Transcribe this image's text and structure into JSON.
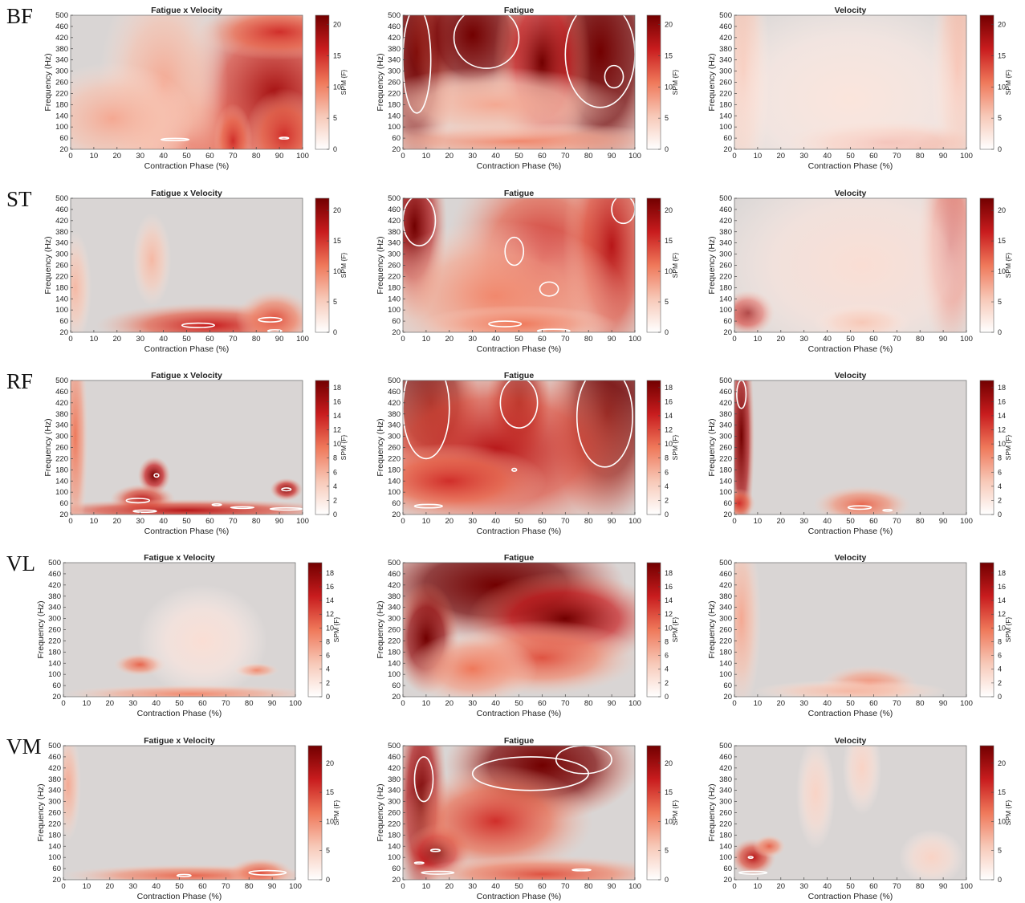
{
  "panel_titles": [
    "Fatigue x Velocity",
    "Fatigue",
    "Velocity"
  ],
  "xlabel": "Contraction Phase (%)",
  "ylabel": "Frequency (Hz)",
  "colorbar_label": "SPM {F}",
  "xticks": [
    0,
    10,
    20,
    30,
    40,
    50,
    60,
    70,
    80,
    90,
    100
  ],
  "yticks": [
    20,
    60,
    100,
    140,
    180,
    220,
    260,
    300,
    340,
    380,
    420,
    460,
    500
  ],
  "colors": {
    "low": "#d9d5d4",
    "high": "#720000",
    "contour": "#ffffff"
  },
  "muscles": [
    {
      "label": "BF",
      "colorbar_ticks": [
        0,
        5,
        10,
        15,
        20
      ],
      "cbar_max": 21.5
    },
    {
      "label": "ST",
      "colorbar_ticks": [
        0,
        5,
        10,
        15,
        20
      ],
      "cbar_max": 22
    },
    {
      "label": "RF",
      "colorbar_ticks": [
        0,
        2,
        4,
        6,
        8,
        10,
        12,
        14,
        16,
        18
      ],
      "cbar_max": 19
    },
    {
      "label": "VL",
      "colorbar_ticks": [
        0,
        2,
        4,
        6,
        8,
        10,
        12,
        14,
        16,
        18
      ],
      "cbar_max": 19.5
    },
    {
      "label": "VM",
      "colorbar_ticks": [
        0,
        5,
        10,
        15,
        20
      ],
      "cbar_max": 23
    }
  ],
  "chart_data": [
    {
      "type": "heatmap",
      "muscle": "BF",
      "title": "Fatigue x Velocity",
      "xlabel": "Contraction Phase (%)",
      "ylabel": "Frequency (Hz)",
      "xlim": [
        0,
        100
      ],
      "ylim": [
        20,
        500
      ],
      "colorbar": "SPM {F}",
      "clim": [
        0,
        21.5
      ],
      "blobs": [
        [
          52,
          40,
          0.25,
          0.35,
          0.6
        ],
        [
          88,
          220,
          0.3,
          0.55,
          0.85
        ],
        [
          90,
          440,
          0.25,
          0.15,
          0.7
        ],
        [
          70,
          50,
          0.06,
          0.2,
          0.7
        ],
        [
          92,
          70,
          0.12,
          0.25,
          0.7
        ],
        [
          40,
          250,
          0.2,
          0.6,
          0.35
        ],
        [
          18,
          130,
          0.25,
          0.3,
          0.35
        ]
      ],
      "contours": [
        [
          45,
          55,
          6,
          4
        ],
        [
          92,
          60,
          2,
          3
        ]
      ]
    },
    {
      "type": "heatmap",
      "muscle": "BF",
      "title": "Fatigue",
      "xlabel": "Contraction Phase (%)",
      "ylabel": "Frequency (Hz)",
      "xlim": [
        0,
        100
      ],
      "ylim": [
        20,
        500
      ],
      "colorbar": "SPM {F}",
      "clim": [
        0,
        21.5
      ],
      "blobs": [
        [
          6,
          370,
          0.12,
          0.7,
          1.3
        ],
        [
          30,
          430,
          0.2,
          0.4,
          1.3
        ],
        [
          85,
          370,
          0.2,
          0.7,
          1.4
        ],
        [
          60,
          330,
          0.15,
          0.55,
          1.0
        ],
        [
          50,
          50,
          0.5,
          0.1,
          0.45
        ],
        [
          40,
          180,
          0.4,
          0.2,
          0.35
        ]
      ],
      "contours": [
        [
          6,
          340,
          6,
          190
        ],
        [
          36,
          420,
          14,
          110
        ],
        [
          85,
          360,
          15,
          190
        ],
        [
          91,
          280,
          4,
          40
        ]
      ]
    },
    {
      "type": "heatmap",
      "muscle": "BF",
      "title": "Velocity",
      "xlabel": "Contraction Phase (%)",
      "ylabel": "Frequency (Hz)",
      "xlim": [
        0,
        100
      ],
      "ylim": [
        20,
        500
      ],
      "colorbar": "SPM {F}",
      "clim": [
        0,
        21.5
      ],
      "blobs": [
        [
          4,
          300,
          0.08,
          0.7,
          0.3
        ],
        [
          96,
          300,
          0.08,
          0.7,
          0.35
        ],
        [
          65,
          45,
          0.3,
          0.12,
          0.6
        ],
        [
          50,
          200,
          0.5,
          0.6,
          0.12
        ]
      ],
      "contours": []
    },
    {
      "type": "heatmap",
      "muscle": "ST",
      "title": "Fatigue x Velocity",
      "xlabel": "Contraction Phase (%)",
      "ylabel": "Frequency (Hz)",
      "xlim": [
        0,
        100
      ],
      "ylim": [
        20,
        500
      ],
      "colorbar": "SPM {F}",
      "clim": [
        0,
        22
      ],
      "blobs": [
        [
          60,
          45,
          0.35,
          0.12,
          0.75
        ],
        [
          88,
          70,
          0.12,
          0.15,
          0.6
        ],
        [
          2,
          180,
          0.05,
          0.3,
          0.3
        ],
        [
          35,
          280,
          0.06,
          0.25,
          0.3
        ]
      ],
      "contours": [
        [
          55,
          45,
          7,
          8
        ],
        [
          86,
          65,
          5,
          8
        ],
        [
          88,
          25,
          3,
          4
        ]
      ]
    },
    {
      "type": "heatmap",
      "muscle": "ST",
      "title": "Fatigue",
      "xlabel": "Contraction Phase (%)",
      "ylabel": "Frequency (Hz)",
      "xlim": [
        0,
        100
      ],
      "ylim": [
        20,
        500
      ],
      "colorbar": "SPM {F}",
      "clim": [
        0,
        22
      ],
      "blobs": [
        [
          5,
          400,
          0.1,
          0.5,
          1.1
        ],
        [
          60,
          280,
          0.3,
          0.6,
          0.75
        ],
        [
          90,
          330,
          0.15,
          0.7,
          0.8
        ],
        [
          40,
          150,
          0.4,
          0.4,
          0.45
        ],
        [
          50,
          50,
          0.3,
          0.1,
          0.5
        ]
      ],
      "contours": [
        [
          7,
          420,
          7,
          90
        ],
        [
          48,
          310,
          4,
          50
        ],
        [
          63,
          175,
          4,
          25
        ],
        [
          44,
          50,
          7,
          10
        ],
        [
          65,
          25,
          7,
          6
        ],
        [
          95,
          460,
          5,
          50
        ]
      ]
    },
    {
      "type": "heatmap",
      "muscle": "ST",
      "title": "Velocity",
      "xlabel": "Contraction Phase (%)",
      "ylabel": "Frequency (Hz)",
      "xlim": [
        0,
        100
      ],
      "ylim": [
        20,
        500
      ],
      "colorbar": "SPM {F}",
      "clim": [
        0,
        22
      ],
      "blobs": [
        [
          6,
          90,
          0.08,
          0.12,
          0.9
        ],
        [
          93,
          330,
          0.1,
          0.55,
          0.8
        ],
        [
          55,
          260,
          0.5,
          0.6,
          0.15
        ],
        [
          55,
          55,
          0.15,
          0.1,
          0.25
        ]
      ],
      "contours": []
    },
    {
      "type": "heatmap",
      "muscle": "RF",
      "title": "Fatigue x Velocity",
      "xlabel": "Contraction Phase (%)",
      "ylabel": "Frequency (Hz)",
      "xlim": [
        0,
        100
      ],
      "ylim": [
        20,
        500
      ],
      "colorbar": "SPM {F}",
      "clim": [
        0,
        19
      ],
      "blobs": [
        [
          36,
          160,
          0.05,
          0.1,
          1.0
        ],
        [
          31,
          75,
          0.1,
          0.08,
          0.8
        ],
        [
          93,
          110,
          0.05,
          0.06,
          0.95
        ],
        [
          50,
          35,
          0.5,
          0.06,
          0.8
        ],
        [
          2,
          300,
          0.04,
          0.6,
          0.5
        ]
      ],
      "contours": [
        [
          37,
          160,
          1,
          6
        ],
        [
          29,
          70,
          5,
          8
        ],
        [
          32,
          32,
          5,
          4
        ],
        [
          63,
          55,
          2,
          3
        ],
        [
          74,
          45,
          5,
          3
        ],
        [
          93,
          110,
          2,
          5
        ],
        [
          93,
          40,
          7,
          4
        ]
      ]
    },
    {
      "type": "heatmap",
      "muscle": "RF",
      "title": "Fatigue",
      "xlabel": "Contraction Phase (%)",
      "ylabel": "Frequency (Hz)",
      "xlim": [
        0,
        100
      ],
      "ylim": [
        20,
        500
      ],
      "colorbar": "SPM {F}",
      "clim": [
        0,
        19
      ],
      "blobs": [
        [
          12,
          420,
          0.15,
          0.4,
          1.4
        ],
        [
          50,
          420,
          0.1,
          0.3,
          1.2
        ],
        [
          88,
          380,
          0.18,
          0.6,
          1.4
        ],
        [
          40,
          250,
          0.5,
          0.5,
          0.8
        ],
        [
          20,
          140,
          0.3,
          0.2,
          0.7
        ]
      ],
      "contours": [
        [
          10,
          400,
          10,
          180
        ],
        [
          50,
          420,
          8,
          90
        ],
        [
          87,
          370,
          12,
          180
        ],
        [
          48,
          180,
          1,
          5
        ],
        [
          11,
          50,
          6,
          6
        ]
      ]
    },
    {
      "type": "heatmap",
      "muscle": "RF",
      "title": "Velocity",
      "xlabel": "Contraction Phase (%)",
      "ylabel": "Frequency (Hz)",
      "xlim": [
        0,
        100
      ],
      "ylim": [
        20,
        500
      ],
      "colorbar": "SPM {F}",
      "clim": [
        0,
        19
      ],
      "blobs": [
        [
          3,
          300,
          0.04,
          0.6,
          1.1
        ],
        [
          55,
          55,
          0.15,
          0.1,
          0.55
        ],
        [
          2,
          60,
          0.05,
          0.08,
          0.7
        ]
      ],
      "contours": [
        [
          3,
          450,
          2,
          50
        ],
        [
          54,
          45,
          5,
          6
        ],
        [
          66,
          35,
          2,
          3
        ]
      ]
    },
    {
      "type": "heatmap",
      "muscle": "VL",
      "title": "Fatigue x Velocity",
      "xlabel": "Contraction Phase (%)",
      "ylabel": "Frequency (Hz)",
      "xlim": [
        0,
        100
      ],
      "ylim": [
        20,
        500
      ],
      "colorbar": "SPM {F}",
      "clim": [
        0,
        19.5
      ],
      "blobs": [
        [
          33,
          135,
          0.08,
          0.06,
          0.55
        ],
        [
          83,
          115,
          0.07,
          0.04,
          0.45
        ],
        [
          60,
          220,
          0.2,
          0.3,
          0.15
        ],
        [
          55,
          30,
          0.4,
          0.05,
          0.45
        ]
      ],
      "contours": []
    },
    {
      "type": "heatmap",
      "muscle": "VL",
      "title": "Fatigue",
      "xlabel": "Contraction Phase (%)",
      "ylabel": "Frequency (Hz)",
      "xlim": [
        0,
        100
      ],
      "ylim": [
        20,
        500
      ],
      "colorbar": "SPM {F}",
      "clim": [
        0,
        19.5
      ],
      "blobs": [
        [
          40,
          420,
          0.4,
          0.3,
          1.5
        ],
        [
          10,
          230,
          0.1,
          0.3,
          1.2
        ],
        [
          70,
          300,
          0.3,
          0.25,
          1.0
        ],
        [
          60,
          160,
          0.3,
          0.2,
          0.6
        ],
        [
          30,
          120,
          0.2,
          0.2,
          0.5
        ]
      ],
      "contours": []
    },
    {
      "type": "heatmap",
      "muscle": "VL",
      "title": "Velocity",
      "xlabel": "Contraction Phase (%)",
      "ylabel": "Frequency (Hz)",
      "xlim": [
        0,
        100
      ],
      "ylim": [
        20,
        500
      ],
      "colorbar": "SPM {F}",
      "clim": [
        0,
        19.5
      ],
      "blobs": [
        [
          3,
          300,
          0.06,
          0.5,
          0.35
        ],
        [
          58,
          65,
          0.15,
          0.1,
          0.45
        ],
        [
          50,
          40,
          0.3,
          0.06,
          0.3
        ]
      ],
      "contours": []
    },
    {
      "type": "heatmap",
      "muscle": "VM",
      "title": "Fatigue x Velocity",
      "xlabel": "Contraction Phase (%)",
      "ylabel": "Frequency (Hz)",
      "xlim": [
        0,
        100
      ],
      "ylim": [
        20,
        500
      ],
      "colorbar": "SPM {F}",
      "clim": [
        0,
        23
      ],
      "blobs": [
        [
          55,
          35,
          0.4,
          0.06,
          0.55
        ],
        [
          85,
          45,
          0.1,
          0.08,
          0.6
        ],
        [
          2,
          360,
          0.04,
          0.3,
          0.35
        ]
      ],
      "contours": [
        [
          52,
          35,
          3,
          4
        ],
        [
          88,
          45,
          8,
          8
        ]
      ]
    },
    {
      "type": "heatmap",
      "muscle": "VM",
      "title": "Fatigue",
      "xlabel": "Contraction Phase (%)",
      "ylabel": "Frequency (Hz)",
      "xlim": [
        0,
        100
      ],
      "ylim": [
        20,
        500
      ],
      "colorbar": "SPM {F}",
      "clim": [
        0,
        23
      ],
      "blobs": [
        [
          60,
          430,
          0.3,
          0.3,
          1.3
        ],
        [
          8,
          300,
          0.08,
          0.6,
          1.1
        ],
        [
          15,
          120,
          0.1,
          0.15,
          1.0
        ],
        [
          40,
          230,
          0.3,
          0.3,
          0.7
        ],
        [
          60,
          40,
          0.4,
          0.1,
          0.6
        ]
      ],
      "contours": [
        [
          9,
          380,
          4,
          80
        ],
        [
          55,
          400,
          25,
          60
        ],
        [
          78,
          450,
          12,
          50
        ],
        [
          14,
          125,
          2,
          4
        ],
        [
          7,
          80,
          2,
          3
        ],
        [
          15,
          45,
          7,
          5
        ],
        [
          77,
          55,
          4,
          3
        ]
      ]
    },
    {
      "type": "heatmap",
      "muscle": "VM",
      "title": "Velocity",
      "xlabel": "Contraction Phase (%)",
      "ylabel": "Frequency (Hz)",
      "xlim": [
        0,
        100
      ],
      "ylim": [
        20,
        500
      ],
      "colorbar": "SPM {F}",
      "clim": [
        0,
        23
      ],
      "blobs": [
        [
          8,
          100,
          0.07,
          0.1,
          0.8
        ],
        [
          15,
          140,
          0.05,
          0.06,
          0.55
        ],
        [
          35,
          330,
          0.06,
          0.3,
          0.2
        ],
        [
          55,
          420,
          0.06,
          0.25,
          0.2
        ],
        [
          85,
          100,
          0.1,
          0.15,
          0.2
        ]
      ],
      "contours": [
        [
          7,
          100,
          1,
          3
        ],
        [
          8,
          45,
          6,
          5
        ]
      ]
    }
  ]
}
